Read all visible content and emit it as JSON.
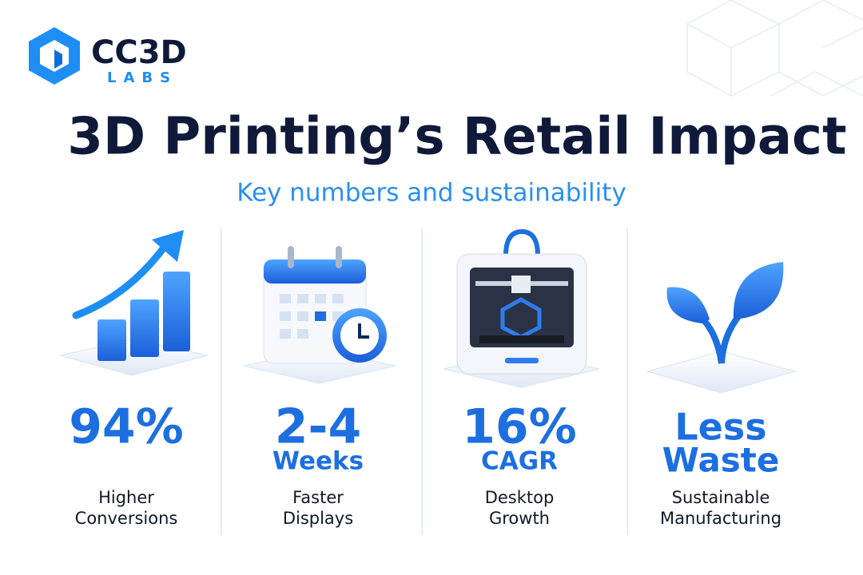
{
  "logo": {
    "name": "CC3D",
    "sub": "LABS"
  },
  "header": {
    "title": "3D Printing’s Retail Impact",
    "subtitle": "Key numbers and sustainability"
  },
  "stats": [
    {
      "value": "94%",
      "unit": null,
      "lines": [
        "Higher",
        "Conversions"
      ]
    },
    {
      "value": "2-4",
      "unit": "Weeks",
      "lines": [
        "Faster",
        "Displays"
      ]
    },
    {
      "value": "16%",
      "unit": "CAGR",
      "lines": [
        "Desktop",
        "Growth"
      ]
    },
    {
      "value": "Less",
      "unit": "Waste",
      "lines": [
        "Sustainable",
        "Manufacturing"
      ]
    }
  ]
}
